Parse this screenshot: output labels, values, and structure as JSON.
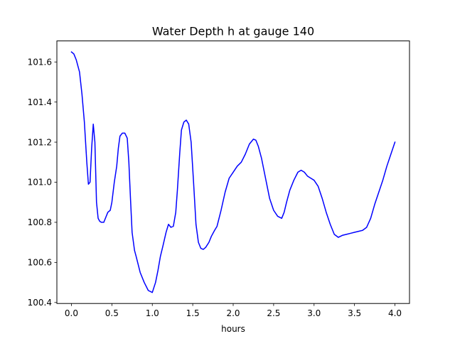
{
  "chart_data": {
    "type": "line",
    "title": "Water Depth h at gauge 140",
    "xlabel": "hours",
    "ylabel": "",
    "xlim": [
      -0.18,
      4.18
    ],
    "ylim": [
      100.395,
      101.705
    ],
    "xticks": [
      0.0,
      0.5,
      1.0,
      1.5,
      2.0,
      2.5,
      3.0,
      3.5,
      4.0
    ],
    "xtick_labels": [
      "0.0",
      "0.5",
      "1.0",
      "1.5",
      "2.0",
      "2.5",
      "3.0",
      "3.5",
      "4.0"
    ],
    "yticks": [
      100.4,
      100.6,
      100.8,
      101.0,
      101.2,
      101.4,
      101.6
    ],
    "ytick_labels": [
      "100.4",
      "100.6",
      "100.8",
      "101.0",
      "101.2",
      "101.4",
      "101.6"
    ],
    "grid": false,
    "legend": "none",
    "series": [
      {
        "color": "#0000ff",
        "x": [
          0.0,
          0.03,
          0.06,
          0.1,
          0.13,
          0.16,
          0.19,
          0.21,
          0.23,
          0.25,
          0.27,
          0.29,
          0.31,
          0.33,
          0.35,
          0.37,
          0.4,
          0.43,
          0.45,
          0.48,
          0.5,
          0.53,
          0.56,
          0.58,
          0.6,
          0.63,
          0.66,
          0.69,
          0.71,
          0.73,
          0.75,
          0.78,
          0.8,
          0.85,
          0.9,
          0.95,
          1.0,
          1.04,
          1.07,
          1.1,
          1.13,
          1.17,
          1.2,
          1.23,
          1.26,
          1.29,
          1.31,
          1.34,
          1.36,
          1.39,
          1.42,
          1.45,
          1.48,
          1.51,
          1.54,
          1.57,
          1.6,
          1.63,
          1.66,
          1.7,
          1.73,
          1.77,
          1.8,
          1.85,
          1.9,
          1.95,
          2.0,
          2.05,
          2.1,
          2.15,
          2.2,
          2.25,
          2.28,
          2.31,
          2.35,
          2.4,
          2.45,
          2.5,
          2.55,
          2.6,
          2.63,
          2.66,
          2.7,
          2.75,
          2.8,
          2.84,
          2.88,
          2.92,
          2.96,
          3.0,
          3.05,
          3.1,
          3.15,
          3.2,
          3.25,
          3.3,
          3.35,
          3.4,
          3.45,
          3.5,
          3.55,
          3.6,
          3.65,
          3.7,
          3.75,
          3.8,
          3.85,
          3.9,
          3.95,
          4.0
        ],
        "y": [
          101.65,
          101.64,
          101.61,
          101.55,
          101.44,
          101.3,
          101.1,
          100.99,
          101.0,
          101.17,
          101.29,
          101.2,
          100.9,
          100.82,
          100.805,
          100.8,
          100.8,
          100.83,
          100.85,
          100.86,
          100.9,
          101.0,
          101.08,
          101.17,
          101.23,
          101.245,
          101.245,
          101.22,
          101.1,
          100.92,
          100.75,
          100.66,
          100.63,
          100.55,
          100.5,
          100.46,
          100.45,
          100.5,
          100.56,
          100.63,
          100.68,
          100.75,
          100.79,
          100.775,
          100.78,
          100.85,
          100.96,
          101.15,
          101.26,
          101.3,
          101.31,
          101.29,
          101.2,
          101.0,
          100.79,
          100.7,
          100.67,
          100.665,
          100.675,
          100.7,
          100.73,
          100.76,
          100.78,
          100.86,
          100.95,
          101.02,
          101.05,
          101.08,
          101.1,
          101.14,
          101.19,
          101.215,
          101.21,
          101.18,
          101.12,
          101.02,
          100.92,
          100.86,
          100.83,
          100.82,
          100.85,
          100.9,
          100.96,
          101.01,
          101.05,
          101.06,
          101.05,
          101.03,
          101.02,
          101.01,
          100.98,
          100.92,
          100.85,
          100.79,
          100.74,
          100.725,
          100.735,
          100.74,
          100.745,
          100.75,
          100.755,
          100.76,
          100.775,
          100.82,
          100.89,
          100.95,
          101.01,
          101.08,
          101.14,
          101.2
        ]
      }
    ]
  }
}
